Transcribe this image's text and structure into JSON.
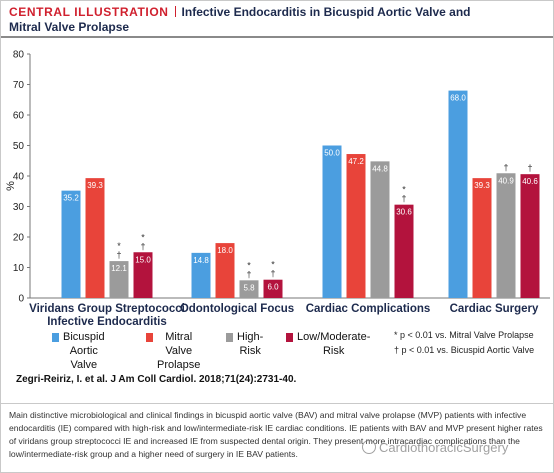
{
  "header": {
    "tag": "CENTRAL ILLUSTRATION",
    "title_line1": "Infective Endocarditis in Bicuspid Aortic Valve and",
    "title_line2": "Mitral Valve Prolapse"
  },
  "colors": {
    "bav": "#4b9ee0",
    "mvp": "#e8443a",
    "high_risk": "#9b9b9b",
    "low_moderate": "#b3133d",
    "header_red": "#d0202e"
  },
  "chart_data": {
    "type": "bar",
    "ylabel": "%",
    "ylim": [
      0,
      80
    ],
    "yticks": [
      0,
      10,
      20,
      30,
      40,
      50,
      60,
      70,
      80
    ],
    "grid": false,
    "legend_position": "bottom",
    "categories": [
      [
        "Viridans Group Streptococci",
        "Infective Endocarditis"
      ],
      [
        "Odontological Focus"
      ],
      [
        "Cardiac Complications"
      ],
      [
        "Cardiac Surgery"
      ]
    ],
    "series": [
      {
        "name": "Bicuspid Aortic Valve",
        "values": [
          35.2,
          14.8,
          50.0,
          68.0
        ],
        "labels": [
          "35.2",
          "14.8",
          "50.0",
          "68.0"
        ]
      },
      {
        "name": "Mitral Valve Prolapse",
        "values": [
          39.3,
          18.0,
          47.2,
          39.3
        ],
        "labels": [
          "39.3",
          "18.0",
          "47.2",
          "39.3"
        ]
      },
      {
        "name": "High-Risk",
        "values": [
          12.1,
          5.8,
          44.8,
          40.9
        ],
        "labels": [
          "12.1",
          "5.8",
          "44.8",
          "40.9"
        ]
      },
      {
        "name": "Low/Moderate-Risk",
        "values": [
          15.0,
          6.0,
          30.6,
          40.6
        ],
        "labels": [
          "15.0",
          "6.0",
          "30.6",
          "40.6"
        ]
      }
    ],
    "significance": [
      [
        [],
        [],
        [
          "*",
          "†"
        ],
        [
          "*",
          "†"
        ]
      ],
      [
        [],
        [],
        [
          "*",
          "†"
        ],
        [
          "*",
          "†"
        ]
      ],
      [
        [],
        [],
        [],
        [
          "*",
          "†"
        ]
      ],
      [
        [],
        [],
        [
          "†"
        ],
        [
          "†"
        ]
      ]
    ],
    "notes": [
      "* p < 0.01 vs. Mitral Valve Prolapse",
      "† p < 0.01 vs. Bicuspid Aortic Valve"
    ]
  },
  "legend": [
    {
      "lines": [
        "Bicuspid Aortic",
        "Valve"
      ]
    },
    {
      "lines": [
        "Mitral Valve",
        "Prolapse"
      ]
    },
    {
      "lines": [
        "High-Risk"
      ]
    },
    {
      "lines": [
        "Low/Moderate-Risk"
      ]
    }
  ],
  "citation": "Zegri-Reiriz, I. et al. J Am Coll Cardiol. 2018;71(24):2731-40.",
  "caption": "Main distinctive microbiological and clinical findings in bicuspid aortic valve (BAV) and mitral valve prolapse (MVP) patients with infective endocarditis (IE) compared with high-risk and low/intermediate-risk IE cardiac conditions. IE patients with BAV and MVP present higher rates of viridans group streptococci IE and increased IE from suspected dental origin. They present more intracardiac complications than the low/intermediate-risk group and a higher need of surgery in IE BAV patients.",
  "watermark": "CardiothoracicSurgery"
}
